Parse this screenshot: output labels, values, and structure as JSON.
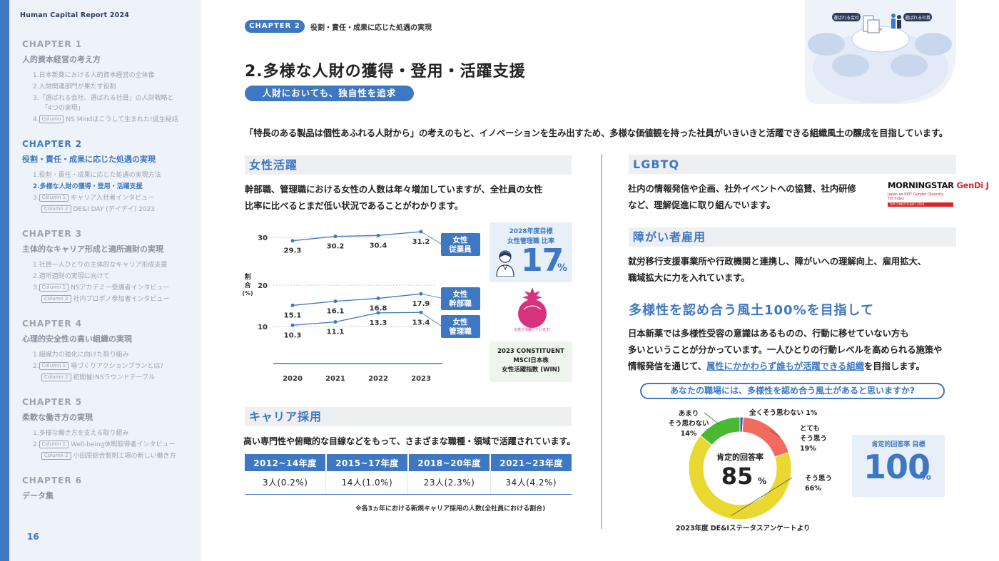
{
  "sidebar": {
    "report_title": "Human Capital Report 2024",
    "chapters": [
      {
        "label": "CHAPTER 1",
        "title": "人的資本経営の考え方",
        "items": [
          {
            "text": "1.日本新薬における人的資本経営の全体像"
          },
          {
            "text": "2.人財関連部門が果たす役割"
          },
          {
            "text": "3.「選ばれる会社、選ばれる社員」の人財戦略と"
          },
          {
            "text": "「4つの実現」"
          },
          {
            "prefix": "4.",
            "tag": "Column",
            "text": "NS Mindはこうして生まれた!誕生秘話"
          }
        ]
      },
      {
        "label": "CHAPTER 2",
        "title": "役割・責任・成果に応じた処遇の実現",
        "items": [
          {
            "text": "1.役割・責任・成果に応じた処遇の実現方法"
          },
          {
            "text": "2.多様な人財の獲得・登用・活躍支援"
          },
          {
            "prefix": "3.",
            "tag": "Column 1",
            "text": "キャリア入社者インタビュー"
          },
          {
            "tag": "Column 2",
            "text": "DE&I DAY (デイデイ) 2023"
          }
        ]
      },
      {
        "label": "CHAPTER 3",
        "title": "主体的なキャリア形成と適所適財の実現",
        "items": [
          {
            "text": "1.社員一人ひとりの主体的なキャリア形成支援"
          },
          {
            "text": "2.適所適財の実現に向けて"
          },
          {
            "prefix": "3.",
            "tag": "Column 1",
            "text": "NSアカデミー受講者インタビュー"
          },
          {
            "tag": "Column 2",
            "text": "社内プロボノ参加者インタビュー"
          }
        ]
      },
      {
        "label": "CHAPTER 4",
        "title": "心理的安全性の高い組織の実現",
        "items": [
          {
            "text": "1.組織力の強化に向けた取り組み"
          },
          {
            "prefix": "2.",
            "tag": "Column 1",
            "text": "場づくりアクションプランとは?"
          },
          {
            "tag": "Column 2",
            "text": "初開催!NSラウンドテーブル"
          }
        ]
      },
      {
        "label": "CHAPTER 5",
        "title": "柔軟な働き方の実現",
        "items": [
          {
            "text": "1.多様な働き方を支える取り組み"
          },
          {
            "prefix": "2.",
            "tag": "Column 1",
            "text": "Well-being休暇取得者インタビュー"
          },
          {
            "tag": "Column 2",
            "text": "小田原総合製剤工場の新しい働き方"
          }
        ]
      },
      {
        "label": "CHAPTER 6",
        "title": "データ集",
        "items": []
      }
    ],
    "page_number": "16"
  },
  "header": {
    "chapter_badge": "CHAPTER 2",
    "chapter_label": "役割・責任・成果に応じた処遇の実現",
    "page_title": "2.多様な人財の獲得・登用・活躍支援",
    "subtitle": "人財においても、独自性を追求",
    "hero": {
      "left_label": "選ばれる会社",
      "right_label": "選ばれる社員"
    }
  },
  "intro": "「特長のある製品は個性あふれる人財から」の考えのもと、イノベーションを生み出すため、多様な価値観を持った社員がいきいきと活躍できる組織風土の醸成を目指しています。",
  "women": {
    "heading": "女性活躍",
    "text_line1": "幹部職、管理職における女性の人数は年々増加していますが、全社員の女性",
    "text_line2": "比率に比べるとまだ低い状況であることがわかります。",
    "target": {
      "line1": "2028年度目標",
      "line2": "女性管理職 比率",
      "value": "17",
      "unit": "%"
    },
    "seal_text": "女性が活躍しています!",
    "msci": {
      "line1": "2023 CONSTITUENT",
      "line2": "MSCI日本株",
      "line3": "女性活躍指数 (WIN)"
    }
  },
  "career": {
    "heading": "キャリア採用",
    "text": "高い専門性や俯瞰的な目線などをもって、さまざまな職種・領域で活躍されています。",
    "headers": [
      "2012~14年度",
      "2015~17年度",
      "2018~20年度",
      "2021~23年度"
    ],
    "values": [
      "3人(0.2%)",
      "14人(1.0%)",
      "23人(2.3%)",
      "34人(4.2%)"
    ],
    "note": "※各3ヵ年における新規キャリア採用の人数(全社員における割合)"
  },
  "lgbtq": {
    "heading": "LGBTQ",
    "text_line1": "社内の情報発信や企画、社外イベントへの協賛、社内研修",
    "text_line2": "など、理解促進に取り組んでいます。",
    "logo": {
      "brand1": "MORNINGSTAR",
      "brand2": "GenDi J",
      "small1": "Japan ex-REIT Gender Diversity",
      "small2": "Tilt Index",
      "small3": "TOP CONSTITUENT 2024"
    }
  },
  "disability": {
    "heading": "障がい者雇用",
    "text_line1": "就労移行支援事業所や行政機関と連携し、障がいへの理解向上、雇用拡大、",
    "text_line2": "職域拡大に力を入れています。"
  },
  "diversity": {
    "heading": "多様性を認め合う風土100%を目指して",
    "text_line1": "日本新薬では多様性受容の意識はあるものの、行動に移せていない方も",
    "text_line2": "多いということが分かっています。一人ひとりの行動レベルを高められる施策や",
    "text_line3_pre": "情報発信を通じて、",
    "text_line3_hl": "属性にかかわらず誰もが活躍できる組織",
    "text_line3_post": "を目指します。",
    "question": "あなたの職場には、多様性を認め合う風土があると思いますか?",
    "center_label": "肯定的回答率",
    "center_value": "85",
    "center_unit": "%",
    "goal": {
      "label": "肯定的回答率 目標",
      "value": "100",
      "unit": "%"
    },
    "source": "2023年度 DE&Iステータスアンケートより"
  },
  "chart_data": [
    {
      "type": "line",
      "title": "",
      "xlabel": "",
      "ylabel": "割合 (%)",
      "x": [
        "2020",
        "2021",
        "2022",
        "2023"
      ],
      "yticks": [
        10,
        20,
        30
      ],
      "ylim": [
        8,
        33
      ],
      "series": [
        {
          "name": "女性 従業員",
          "values": [
            29.3,
            30.2,
            30.4,
            31.2
          ],
          "color": "#3e78c2"
        },
        {
          "name": "女性 幹部職",
          "values": [
            15.1,
            16.1,
            16.8,
            17.9
          ],
          "color": "#3e78c2"
        },
        {
          "name": "女性 管理職",
          "values": [
            10.3,
            11.1,
            13.3,
            13.4
          ],
          "color": "#3e78c2"
        }
      ]
    },
    {
      "type": "pie",
      "title": "あなたの職場には、多様性を認め合う風土があると思いますか?",
      "slices": [
        {
          "label": "全くそう思わない",
          "value": 1,
          "color": "#2f5fa8"
        },
        {
          "label": "とてもそう思う",
          "value": 19,
          "color": "#f26b5e"
        },
        {
          "label": "そう思う",
          "value": 66,
          "color": "#e8d830"
        },
        {
          "label": "あまりそう思わない",
          "value": 14,
          "color": "#49b833"
        }
      ]
    }
  ]
}
